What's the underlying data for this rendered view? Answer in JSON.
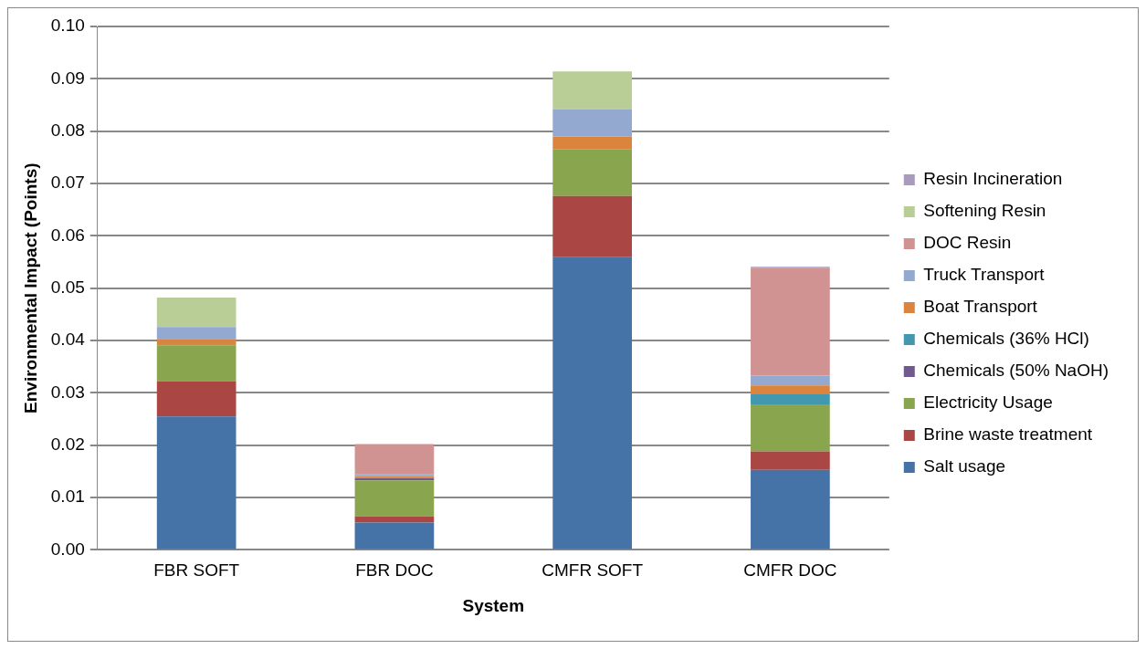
{
  "chart_data": {
    "type": "bar",
    "stacked": true,
    "xlabel": "System",
    "ylabel": "Environmental Impact (Points)",
    "categories": [
      "FBR SOFT",
      "FBR DOC",
      "CMFR SOFT",
      "CMFR DOC"
    ],
    "ylim": [
      0,
      0.1
    ],
    "yticks": [
      {
        "value": 0,
        "label": "0.00"
      },
      {
        "value": 0.01,
        "label": "0.01"
      },
      {
        "value": 0.02,
        "label": "0.02"
      },
      {
        "value": 0.03,
        "label": "0.03"
      },
      {
        "value": 0.04,
        "label": "0.04"
      },
      {
        "value": 0.05,
        "label": "0.05"
      },
      {
        "value": 0.06,
        "label": "0.06"
      },
      {
        "value": 0.07,
        "label": "0.07"
      },
      {
        "value": 0.08,
        "label": "0.08"
      },
      {
        "value": 0.09,
        "label": "0.09"
      },
      {
        "value": 0.1,
        "label": "0.10"
      }
    ],
    "grid": "y",
    "legend": "right",
    "series": [
      {
        "name": "Salt usage",
        "color": "#4572a7",
        "values": [
          0.0255,
          0.0052,
          0.0559,
          0.0153
        ]
      },
      {
        "name": "Brine waste treatment",
        "color": "#aa4643",
        "values": [
          0.0067,
          0.0012,
          0.0117,
          0.0035
        ]
      },
      {
        "name": "Electricity Usage",
        "color": "#89a54e",
        "values": [
          0.0069,
          0.0069,
          0.0089,
          0.009
        ]
      },
      {
        "name": "Chemicals (50% NaOH)",
        "color": "#71588f",
        "values": [
          0,
          0.0004,
          0,
          0
        ]
      },
      {
        "name": "Chemicals (36% HCl)",
        "color": "#4198af",
        "values": [
          0,
          0.0001,
          0,
          0.0019
        ]
      },
      {
        "name": "Boat Transport",
        "color": "#db843d",
        "values": [
          0.0012,
          0.0003,
          0.0025,
          0.0017
        ]
      },
      {
        "name": "Truck Transport",
        "color": "#93a9cf",
        "values": [
          0.0023,
          0.0004,
          0.0052,
          0.0019
        ]
      },
      {
        "name": "DOC Resin",
        "color": "#d19392",
        "values": [
          0,
          0.0057,
          0,
          0.0206
        ]
      },
      {
        "name": "Softening Resin",
        "color": "#b9cd96",
        "values": [
          0.0056,
          0,
          0.0072,
          0
        ]
      },
      {
        "name": "Resin Incineration",
        "color": "#a99bbd",
        "values": [
          0,
          0,
          0,
          0.0002
        ]
      }
    ]
  }
}
